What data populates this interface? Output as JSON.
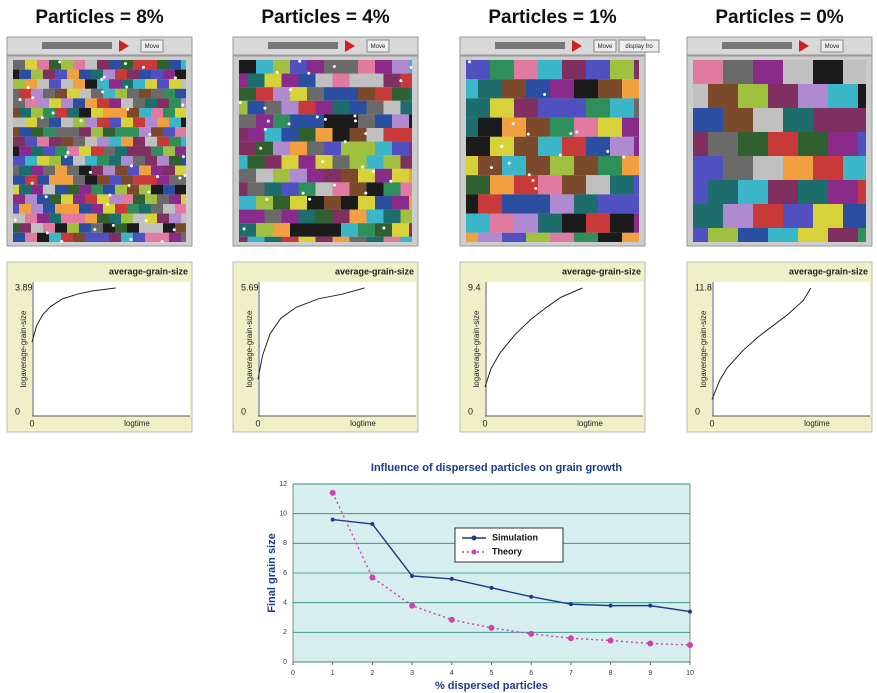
{
  "panels": [
    {
      "title": "Particles = 8%",
      "buttons": [
        "Move"
      ]
    },
    {
      "title": "Particles = 4%",
      "buttons": [
        "Move"
      ]
    },
    {
      "title": "Particles = 1%",
      "buttons": [
        "Move",
        "display fro"
      ]
    },
    {
      "title": "Particles = 0%",
      "buttons": [
        "Move"
      ]
    }
  ],
  "chart_data": [
    {
      "type": "line",
      "title": "average-grain-size",
      "y_label": "logaverage-grain-size",
      "x_label": "logtime",
      "x": [
        0,
        0.3,
        0.7,
        1.2,
        2,
        3,
        4,
        5.5
      ],
      "values": [
        2.2,
        2.7,
        3.05,
        3.3,
        3.55,
        3.7,
        3.8,
        3.89
      ],
      "color": "#222222",
      "xlim": [
        0,
        10
      ],
      "xticks": [
        0
      ],
      "ylim": [
        0,
        3.89
      ],
      "yticks": [
        0,
        3.89
      ]
    },
    {
      "type": "line",
      "title": "average-grain-size",
      "y_label": "logaverage-grain-size",
      "x_label": "logtime",
      "x": [
        0,
        0.3,
        0.8,
        1.5,
        2.5,
        4,
        5.5,
        7
      ],
      "values": [
        1.5,
        2.6,
        3.6,
        4.3,
        4.8,
        5.2,
        5.4,
        5.69
      ],
      "color": "#222222",
      "xlim": [
        0,
        10
      ],
      "xticks": [
        0
      ],
      "ylim": [
        0,
        5.69
      ],
      "yticks": [
        0,
        5.69
      ]
    },
    {
      "type": "line",
      "title": "average-grain-size",
      "y_label": "logaverage-grain-size",
      "x_label": "logtime",
      "x": [
        0,
        0.4,
        1,
        2,
        3,
        4,
        5,
        6.4
      ],
      "values": [
        1.9,
        3.3,
        4.5,
        5.9,
        7,
        7.9,
        8.7,
        9.4
      ],
      "color": "#222222",
      "xlim": [
        0,
        10
      ],
      "xticks": [
        0
      ],
      "ylim": [
        0,
        9.4
      ],
      "yticks": [
        0,
        9.4
      ]
    },
    {
      "type": "line",
      "title": "average-grain-size",
      "y_label": "logaverage-grain-size",
      "x_label": "logtime",
      "x": [
        0,
        0.5,
        1,
        2,
        3,
        4,
        5,
        6,
        6.5
      ],
      "values": [
        1.2,
        3,
        4.2,
        5.8,
        7.1,
        8.2,
        9.3,
        10.6,
        11.8
      ],
      "color": "#222222",
      "xlim": [
        0,
        10
      ],
      "xticks": [
        0
      ],
      "ylim": [
        0,
        11.8
      ],
      "yticks": [
        0,
        11.8
      ]
    },
    {
      "type": "line",
      "title": "Influence of dispersed particles on grain growth",
      "x_label": "% dispersed particles",
      "y_label": "Final grain size",
      "x": [
        1,
        2,
        3,
        4,
        5,
        6,
        7,
        8,
        9,
        10
      ],
      "series": [
        {
          "name": "Simulation",
          "color": "#1f3a8a",
          "dash": false,
          "values": [
            9.6,
            9.3,
            5.8,
            5.6,
            5.0,
            4.4,
            3.9,
            3.8,
            3.8,
            3.4
          ]
        },
        {
          "name": "Theory",
          "color": "#d040b0",
          "dash": true,
          "values": [
            11.4,
            5.7,
            3.8,
            2.85,
            2.3,
            1.9,
            1.6,
            1.45,
            1.25,
            1.15
          ]
        }
      ],
      "xlim": [
        0,
        10
      ],
      "xticks": [
        0,
        1,
        2,
        3,
        4,
        5,
        6,
        7,
        8,
        9,
        10
      ],
      "ylim": [
        0,
        12
      ],
      "yticks": [
        0,
        2,
        4,
        6,
        8,
        10,
        12
      ],
      "grid": true,
      "background": "#d6eeee"
    }
  ]
}
